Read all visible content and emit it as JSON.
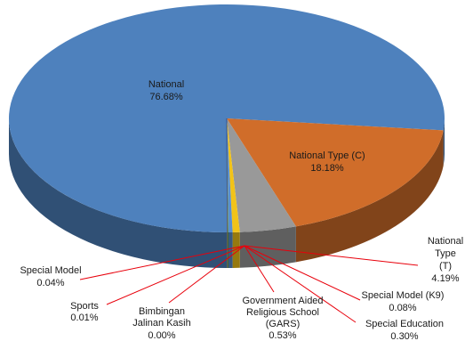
{
  "chart_data": {
    "type": "pie",
    "style": "3d",
    "slices": [
      {
        "name": "National",
        "value": 76.68,
        "display": "76.68%",
        "color": "#4e81bd"
      },
      {
        "name": "National Type (C)",
        "value": 18.18,
        "display": "18.18%",
        "color": "#d06d2a"
      },
      {
        "name": "National Type (T)",
        "value": 4.19,
        "display": "4.19%",
        "color": "#999999"
      },
      {
        "name": "Government Aided Religious School (GARS)",
        "value": 0.53,
        "display": "0.53%",
        "color": "#f2c318"
      },
      {
        "name": "Special Education",
        "value": 0.3,
        "display": "0.30%",
        "color": "#5a8fd0"
      },
      {
        "name": "Special Model (K9)",
        "value": 0.08,
        "display": "0.08%",
        "color": "#6aa84f"
      },
      {
        "name": "Bimbingan Jalinan Kasih",
        "value": 0.0,
        "display": "0.00%",
        "color": "#2f4f8f"
      },
      {
        "name": "Sports",
        "value": 0.01,
        "display": "0.01%",
        "color": "#9e4a1a"
      },
      {
        "name": "Special Model",
        "value": 0.04,
        "display": "0.04%",
        "color": "#6f6f6f"
      }
    ],
    "leader_line_color": "#e8000b"
  }
}
